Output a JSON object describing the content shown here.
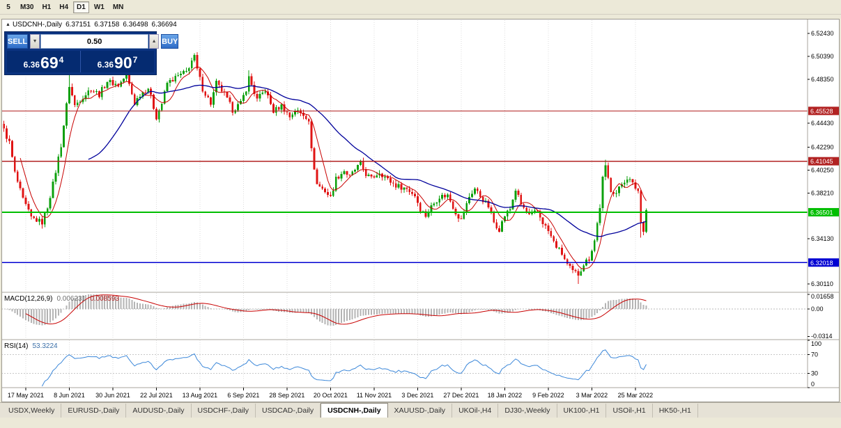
{
  "toolbar": {
    "timeframes": [
      "5",
      "M30",
      "H1",
      "H4",
      "D1",
      "W1",
      "MN"
    ],
    "active_timeframe": "D1"
  },
  "symbol_header": {
    "expand_icon": "▲",
    "symbol": "USDCNH-,Daily",
    "open": "6.37151",
    "high": "6.37158",
    "low": "6.36498",
    "close": "6.36694"
  },
  "trade": {
    "sell_label": "SELL",
    "buy_label": "BUY",
    "volume": "0.50",
    "volume_down_icon": "▼",
    "volume_up_icon": "▲",
    "sell_price": {
      "base": "6.36",
      "pips": "69",
      "point": "4"
    },
    "buy_price": {
      "base": "6.36",
      "pips": "90",
      "point": "7"
    }
  },
  "price_axis": {
    "ticks": [
      {
        "label": "6.52430",
        "value": 6.5243
      },
      {
        "label": "6.50390",
        "value": 6.5039
      },
      {
        "label": "6.48350",
        "value": 6.4835
      },
      {
        "label": "6.44430",
        "value": 6.4443
      },
      {
        "label": "6.42290",
        "value": 6.4229
      },
      {
        "label": "6.40250",
        "value": 6.4025
      },
      {
        "label": "6.38210",
        "value": 6.3821
      },
      {
        "label": "6.34130",
        "value": 6.3413
      },
      {
        "label": "6.30110",
        "value": 6.3011
      }
    ],
    "lines": [
      {
        "label": "6.45528",
        "value": 6.45528,
        "color": "#B22222",
        "role": "resistance-line"
      },
      {
        "label": "6.41045",
        "value": 6.41045,
        "color": "#B22222",
        "role": "resistance-line"
      },
      {
        "label": "6.36501",
        "value": 6.36501,
        "color": "#00BE00",
        "role": "current-price-line"
      },
      {
        "label": "6.32018",
        "value": 6.32018,
        "color": "#0000D2",
        "role": "support-line"
      }
    ]
  },
  "time_axis": {
    "labels": [
      "17 May 2021",
      "8 Jun 2021",
      "30 Jun 2021",
      "22 Jul 2021",
      "13 Aug 2021",
      "6 Sep 2021",
      "28 Sep 2021",
      "20 Oct 2021",
      "11 Nov 2021",
      "3 Dec 2021",
      "27 Dec 2021",
      "18 Jan 2022",
      "9 Feb 2022",
      "3 Mar 2022",
      "25 Mar 2022"
    ]
  },
  "macd": {
    "name": "MACD(12,26,9)",
    "main_value": "0.006231",
    "signal_value": "0.008593",
    "axis_labels": [
      {
        "label": "0.01658",
        "value": 0.01658
      },
      {
        "label": "0.00",
        "value": 0
      },
      {
        "label": "-0.0314",
        "value": -0.0314
      }
    ],
    "params": {
      "fast": 12,
      "slow": 26,
      "signal": 9
    }
  },
  "rsi": {
    "name": "RSI(14)",
    "value": "53.3224",
    "period": 14,
    "levels": [
      70,
      30
    ],
    "axis_labels": [
      {
        "label": "100",
        "value": 100
      },
      {
        "label": "70",
        "value": 70
      },
      {
        "label": "30",
        "value": 30
      },
      {
        "label": "0",
        "value": 0
      }
    ]
  },
  "tabs": {
    "items": [
      "USDX,Weekly",
      "EURUSD-,Daily",
      "AUDUSD-,Daily",
      "USDCHF-,Daily",
      "USDCAD-,Daily",
      "USDCNH-,Daily",
      "XAUUSD-,Daily",
      "UKOil-,H4",
      "DJ30-,Weekly",
      "UK100-,H1",
      "USOil-,H1",
      "HK50-,H1"
    ],
    "active": "USDCNH-,Daily"
  },
  "chart_data": {
    "type": "candlestick",
    "symbol": "USDCNH-",
    "timeframe": "Daily",
    "visible_bars": 237,
    "price_range": [
      6.2943,
      6.5361
    ],
    "bars_per_time_tick": 16,
    "first_tick_bar": 8,
    "close_anchors": [
      [
        0,
        6.438
      ],
      [
        2,
        6.427
      ],
      [
        4,
        6.4
      ],
      [
        7,
        6.376
      ],
      [
        10,
        6.36
      ],
      [
        14,
        6.356
      ],
      [
        16,
        6.37
      ],
      [
        18,
        6.39
      ],
      [
        21,
        6.425
      ],
      [
        24,
        6.478
      ],
      [
        26,
        6.46
      ],
      [
        29,
        6.468
      ],
      [
        32,
        6.475
      ],
      [
        35,
        6.47
      ],
      [
        38,
        6.482
      ],
      [
        42,
        6.478
      ],
      [
        45,
        6.487
      ],
      [
        48,
        6.462
      ],
      [
        50,
        6.47
      ],
      [
        53,
        6.476
      ],
      [
        56,
        6.45
      ],
      [
        58,
        6.462
      ],
      [
        60,
        6.48
      ],
      [
        63,
        6.485
      ],
      [
        67,
        6.49
      ],
      [
        69,
        6.5
      ],
      [
        70,
        6.503
      ],
      [
        71,
        6.492
      ],
      [
        73,
        6.475
      ],
      [
        76,
        6.462
      ],
      [
        78,
        6.48
      ],
      [
        81,
        6.47
      ],
      [
        84,
        6.456
      ],
      [
        87,
        6.462
      ],
      [
        89,
        6.475
      ],
      [
        90,
        6.485
      ],
      [
        93,
        6.465
      ],
      [
        96,
        6.474
      ],
      [
        99,
        6.455
      ],
      [
        102,
        6.46
      ],
      [
        105,
        6.45
      ],
      [
        107,
        6.456
      ],
      [
        110,
        6.452
      ],
      [
        112,
        6.448
      ],
      [
        113,
        6.42
      ],
      [
        115,
        6.39
      ],
      [
        118,
        6.384
      ],
      [
        120,
        6.378
      ],
      [
        122,
        6.395
      ],
      [
        125,
        6.402
      ],
      [
        127,
        6.396
      ],
      [
        129,
        6.403
      ],
      [
        131,
        6.408
      ],
      [
        133,
        6.399
      ],
      [
        135,
        6.395
      ],
      [
        138,
        6.401
      ],
      [
        141,
        6.394
      ],
      [
        144,
        6.389
      ],
      [
        148,
        6.386
      ],
      [
        151,
        6.38
      ],
      [
        153,
        6.368
      ],
      [
        155,
        6.362
      ],
      [
        157,
        6.37
      ],
      [
        160,
        6.379
      ],
      [
        163,
        6.38
      ],
      [
        166,
        6.365
      ],
      [
        168,
        6.358
      ],
      [
        171,
        6.379
      ],
      [
        173,
        6.386
      ],
      [
        176,
        6.376
      ],
      [
        178,
        6.37
      ],
      [
        180,
        6.356
      ],
      [
        182,
        6.35
      ],
      [
        184,
        6.362
      ],
      [
        186,
        6.368
      ],
      [
        188,
        6.385
      ],
      [
        190,
        6.372
      ],
      [
        193,
        6.362
      ],
      [
        196,
        6.366
      ],
      [
        198,
        6.356
      ],
      [
        200,
        6.348
      ],
      [
        202,
        6.338
      ],
      [
        205,
        6.328
      ],
      [
        207,
        6.318
      ],
      [
        209,
        6.312
      ],
      [
        211,
        6.31
      ],
      [
        213,
        6.319
      ],
      [
        215,
        6.324
      ],
      [
        217,
        6.34
      ],
      [
        219,
        6.37
      ],
      [
        220,
        6.395
      ],
      [
        221,
        6.405
      ],
      [
        223,
        6.385
      ],
      [
        225,
        6.382
      ],
      [
        227,
        6.39
      ],
      [
        229,
        6.396
      ],
      [
        231,
        6.39
      ],
      [
        233,
        6.384
      ],
      [
        234,
        6.356
      ],
      [
        235,
        6.35
      ],
      [
        236,
        6.36694
      ]
    ],
    "wick_events": [
      {
        "i": 14,
        "low": 6.3505
      },
      {
        "i": 24,
        "high": 6.4925
      },
      {
        "i": 70,
        "high": 6.5055
      },
      {
        "i": 90,
        "high": 6.4915
      },
      {
        "i": 211,
        "low": 6.3012
      },
      {
        "i": 221,
        "high": 6.4118
      },
      {
        "i": 234,
        "low": 6.3425
      }
    ],
    "ma": [
      {
        "period": 7,
        "color": "#C80000"
      },
      {
        "period": 32,
        "color": "#00009B"
      }
    ],
    "colors": {
      "bull": "#0CA00C",
      "bear": "#E01414",
      "macd_hist": "#B4B4B4",
      "macd_signal": "#C80000",
      "rsi_line": "#3B87D9",
      "grid": "#DCDCDC"
    }
  }
}
